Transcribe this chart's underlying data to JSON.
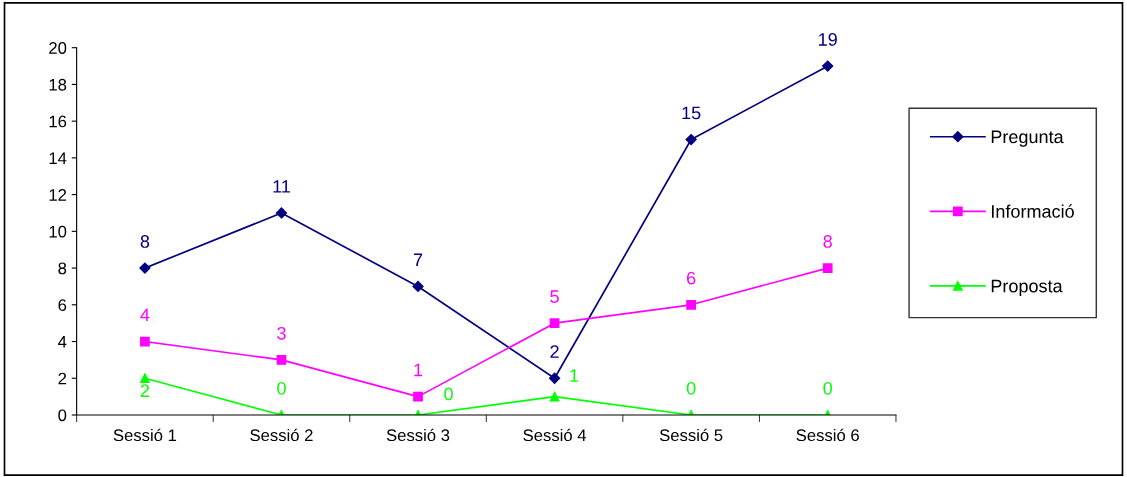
{
  "chart_data": {
    "type": "line",
    "categories": [
      "Sessió 1",
      "Sessió 2",
      "Sessió 3",
      "Sessió 4",
      "Sessió 5",
      "Sessió 6"
    ],
    "series": [
      {
        "name": "Pregunta",
        "color": "#000080",
        "marker": "diamond",
        "values": [
          8,
          11,
          7,
          2,
          15,
          19
        ]
      },
      {
        "name": "Informació",
        "color": "#ff00ff",
        "marker": "square",
        "values": [
          4,
          3,
          1,
          5,
          6,
          8
        ]
      },
      {
        "name": "Proposta",
        "color": "#00ff00",
        "marker": "triangle",
        "values": [
          2,
          0,
          0,
          1,
          0,
          0
        ]
      }
    ],
    "ylim": [
      0,
      20
    ],
    "yticks": [
      0,
      2,
      4,
      6,
      8,
      10,
      12,
      14,
      16,
      18,
      20
    ],
    "grid": false,
    "legend": "right",
    "data_labels": true
  }
}
